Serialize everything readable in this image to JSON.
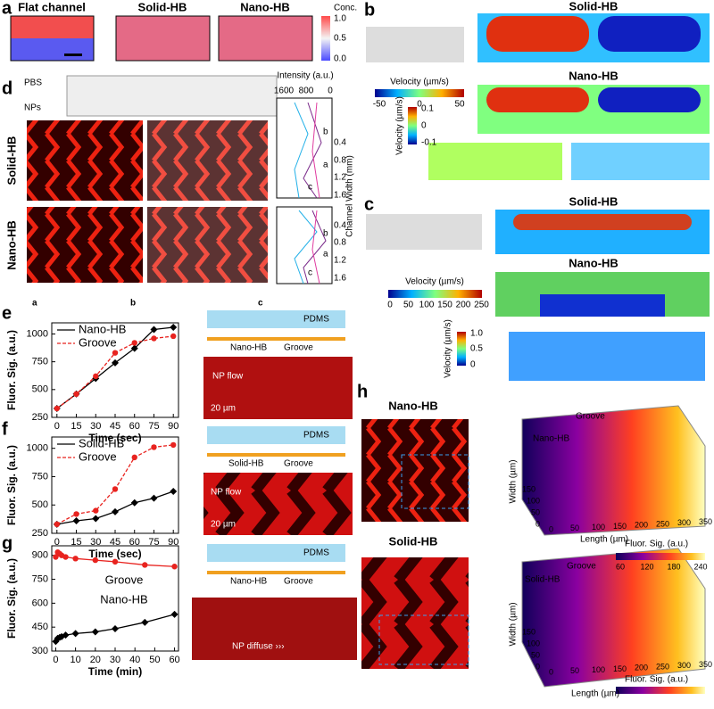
{
  "panel_labels": [
    "a",
    "b",
    "c",
    "d",
    "e",
    "f",
    "g",
    "h"
  ],
  "a": {
    "titles": [
      "Flat channel",
      "Solid-HB",
      "Nano-HB"
    ],
    "colorbar_title": "Conc.",
    "colorbar_ticks": [
      "1.0",
      "0.5",
      "0.0"
    ]
  },
  "b": {
    "titles": [
      "Solid-HB",
      "Nano-HB"
    ],
    "colorbar1_title": "Velocity (µm/s)",
    "colorbar1_ticks": [
      "-50",
      "0",
      "50"
    ],
    "colorbar2_title": "Velocity (µm/s)",
    "colorbar2_ticks": [
      "0.1",
      "0",
      "-0.1"
    ]
  },
  "c": {
    "titles": [
      "Solid-HB",
      "Nano-HB"
    ],
    "colorbar1_title": "Velocity (µm/s)",
    "colorbar1_ticks": [
      "0",
      "50",
      "100",
      "150",
      "200",
      "250"
    ],
    "colorbar2_title": "Velocity (µm/s)",
    "colorbar2_ticks": [
      "1.0",
      "0.5",
      "0"
    ]
  },
  "d": {
    "inlets": [
      "PBS",
      "NPs"
    ],
    "rows": [
      "Solid-HB",
      "Nano-HB"
    ],
    "intensity_title": "Intensity (a.u.)",
    "intensity_ticks": [
      "1600",
      "800",
      "0"
    ],
    "width_title": "Channel Width (mm)",
    "width_ticks": [
      "0.4",
      "0.8",
      "1.2",
      "1.6"
    ],
    "positions": [
      "a",
      "b",
      "c"
    ]
  },
  "e": {
    "schematic_top": "PDMS",
    "schematic_labels": [
      "Nano-HB",
      "Groove"
    ],
    "flow": "NP flow",
    "scale": "20 µm"
  },
  "f": {
    "schematic_top": "PDMS",
    "schematic_labels": [
      "Solid-HB",
      "Groove"
    ],
    "flow": "NP flow",
    "scale": "20 µm"
  },
  "g": {
    "schematic_top": "PDMS",
    "schematic_labels": [
      "Nano-HB",
      "Groove"
    ],
    "flow": "NP diffuse ›››"
  },
  "h": {
    "nano": {
      "title": "Nano-HB",
      "labels": [
        "Nano-HB",
        "Groove"
      ],
      "width_title": "Width (µm)",
      "length_title": "Length (µm)",
      "width_ticks": [
        "0",
        "50",
        "100",
        "150"
      ],
      "length_ticks": [
        "0",
        "50",
        "100",
        "150",
        "200",
        "250",
        "300",
        "350"
      ],
      "cbar_title": "Fluor. Sig. (a.u.)",
      "cbar_ticks": [
        "60",
        "120",
        "180",
        "240"
      ]
    },
    "solid": {
      "title": "Solid-HB",
      "labels": [
        "Solid-HB",
        "Groove"
      ],
      "width_title": "Width (µm)",
      "length_title": "Length (µm)",
      "width_ticks": [
        "0",
        "50",
        "100",
        "150"
      ],
      "length_ticks": [
        "0",
        "50",
        "100",
        "150",
        "200",
        "250",
        "300",
        "350"
      ],
      "cbar_title": "Fluor. Sig. (a.u.)",
      "cbar_ticks": [
        "0",
        "60",
        "120",
        "180"
      ]
    }
  },
  "chart_data": [
    {
      "type": "line",
      "x_label": "Time (sec)",
      "y_label": "Fluor. Sig. (a.u.)",
      "legend": "upper left",
      "x": [
        0,
        15,
        30,
        45,
        60,
        75,
        90
      ],
      "xlim": [
        -4,
        94
      ],
      "xticks": [
        0,
        15,
        30,
        45,
        60,
        75,
        90
      ],
      "ylim": [
        250,
        1100
      ],
      "yticks": [
        250,
        500,
        750,
        1000
      ],
      "series": [
        {
          "name": "Nano-HB",
          "color": "#000000",
          "marker": "diamond",
          "line_style": "solid",
          "values": [
            330,
            460,
            600,
            740,
            870,
            1040,
            1060
          ]
        },
        {
          "name": "Groove",
          "color": "#e8231f",
          "marker": "circle",
          "line_style": "dashed",
          "values": [
            330,
            460,
            620,
            830,
            920,
            960,
            980
          ]
        }
      ]
    },
    {
      "type": "line",
      "x_label": "Time (sec)",
      "y_label": "Fluor. Sig. (a.u.)",
      "legend": "upper left",
      "x": [
        0,
        15,
        30,
        45,
        60,
        75,
        90
      ],
      "xlim": [
        -4,
        94
      ],
      "xticks": [
        0,
        15,
        30,
        45,
        60,
        75,
        90
      ],
      "ylim": [
        250,
        1100
      ],
      "yticks": [
        250,
        500,
        750,
        1000
      ],
      "series": [
        {
          "name": "Solid-HB",
          "color": "#000000",
          "marker": "diamond",
          "line_style": "solid",
          "values": [
            330,
            360,
            380,
            440,
            520,
            560,
            620
          ]
        },
        {
          "name": "Groove",
          "color": "#e8231f",
          "marker": "circle",
          "line_style": "dashed",
          "values": [
            330,
            420,
            450,
            640,
            920,
            1010,
            1030
          ]
        }
      ]
    },
    {
      "type": "line",
      "x_label": "Time (min)",
      "y_label": "Fluor. Sig. (a.u.)",
      "legend": "inline",
      "x": [
        0,
        1,
        2,
        3,
        5,
        10,
        20,
        30,
        45,
        60
      ],
      "xlim": [
        -2,
        62
      ],
      "xticks": [
        0,
        10,
        20,
        30,
        40,
        50,
        60
      ],
      "ylim": [
        300,
        960
      ],
      "yticks": [
        300,
        450,
        600,
        750,
        900
      ],
      "series": [
        {
          "name": "Groove",
          "color": "#e8231f",
          "marker": "circle",
          "line_style": "solid",
          "values": [
            890,
            920,
            910,
            900,
            890,
            880,
            870,
            860,
            840,
            830
          ]
        },
        {
          "name": "Nano-HB",
          "color": "#000000",
          "marker": "diamond",
          "line_style": "solid",
          "values": [
            360,
            380,
            385,
            390,
            400,
            410,
            420,
            440,
            480,
            530
          ]
        }
      ]
    }
  ]
}
